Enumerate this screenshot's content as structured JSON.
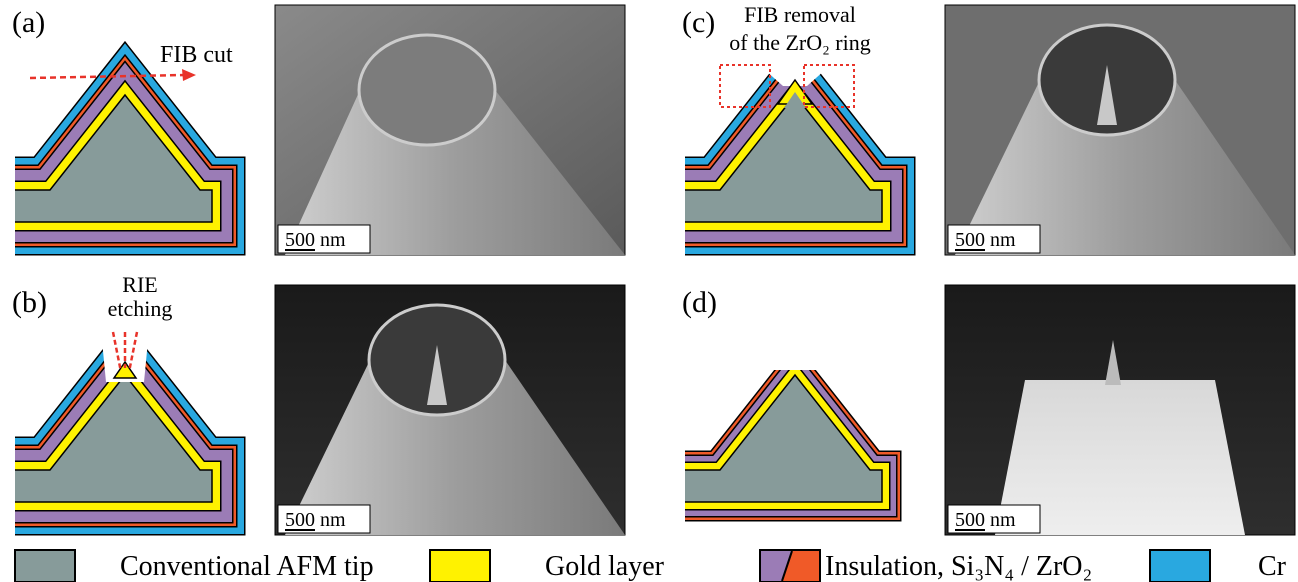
{
  "panels": [
    {
      "label": "(a)",
      "annotation": [
        "FIB cut"
      ],
      "scale_bar": "500 nm"
    },
    {
      "label": "(b)",
      "annotation": [
        "RIE",
        "etching"
      ],
      "scale_bar": "500 nm"
    },
    {
      "label": "(c)",
      "annotation": [
        "FIB removal",
        "of the ZrO₂ ring"
      ],
      "scale_bar": "500 nm"
    },
    {
      "label": "(d)",
      "annotation": [],
      "scale_bar": "500 nm"
    }
  ],
  "legend": [
    {
      "label": "Conventional AFM tip"
    },
    {
      "label": "Gold layer"
    },
    {
      "label": "Insulation, Si₃N₄ / ZrO₂"
    },
    {
      "label": "Cr"
    }
  ]
}
